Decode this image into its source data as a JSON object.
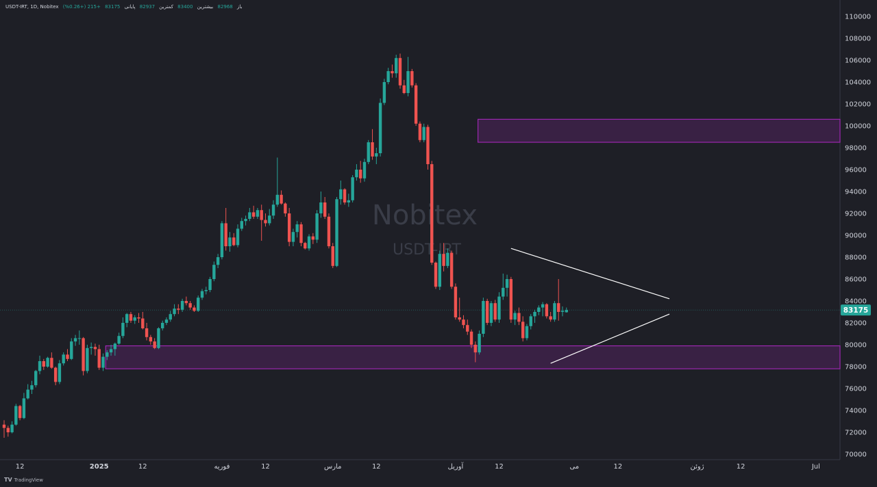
{
  "header": {
    "symbol": "USDT-IRT, 1D, Nobitex",
    "open_label": "باز",
    "open_value": "82968",
    "high_label": "بیشترین",
    "high_value": "83400",
    "low_label": "کمترین",
    "low_value": "82937",
    "close_label": "پایانی",
    "close_value": "83175",
    "change": "+215 (+0.26%)"
  },
  "footer": {
    "brand": "TradingView",
    "logo": "TV"
  },
  "watermark": {
    "line1": "Nobitex",
    "line2": "USDT-IRT"
  },
  "colors": {
    "up": "#26a69a",
    "down": "#ef5350",
    "zone": "#9c27b0",
    "grid": "#2a2e39",
    "background": "#1e1f26",
    "price_tag": "#26a69a"
  },
  "chart_data": {
    "type": "candlestick",
    "timeframe": "1D",
    "y_axis": {
      "ylim": [
        69500,
        111000
      ],
      "ticks": [
        70000,
        72000,
        74000,
        76000,
        78000,
        80000,
        82000,
        84000,
        86000,
        88000,
        90000,
        92000,
        94000,
        96000,
        98000,
        100000,
        102000,
        104000,
        106000,
        108000,
        110000
      ],
      "position": "right"
    },
    "x_axis": {
      "labels": [
        {
          "text": "12",
          "day": 4
        },
        {
          "text": "2025",
          "day": 24
        },
        {
          "text": "12",
          "day": 35
        },
        {
          "text": "فوریه",
          "day": 55
        },
        {
          "text": "12",
          "day": 66
        },
        {
          "text": "مارس",
          "day": 83
        },
        {
          "text": "12",
          "day": 94
        },
        {
          "text": "آوریل",
          "day": 114
        },
        {
          "text": "12",
          "day": 125
        },
        {
          "text": "می",
          "day": 144
        },
        {
          "text": "12",
          "day": 155
        },
        {
          "text": "ژوئن",
          "day": 175
        },
        {
          "text": "12",
          "day": 186
        },
        {
          "text": "Jul",
          "day": 205
        }
      ]
    },
    "last_price": {
      "value": 83175,
      "label": "83175"
    },
    "zones": [
      {
        "from_day": 120,
        "to_day": 210,
        "low": 98500,
        "high": 100600
      },
      {
        "from_day": 26,
        "to_day": 210,
        "low": 77800,
        "high": 79900
      }
    ],
    "trendlines": [
      {
        "from": [
          128,
          88800
        ],
        "to": [
          168,
          84200
        ]
      },
      {
        "from": [
          138,
          78300
        ],
        "to": [
          168,
          82800
        ]
      }
    ],
    "candles": [
      [
        72700,
        73100,
        71500,
        72400
      ],
      [
        72400,
        72600,
        71600,
        72000
      ],
      [
        72000,
        73000,
        71900,
        72700
      ],
      [
        72700,
        74600,
        72600,
        74400
      ],
      [
        74400,
        74500,
        73100,
        73300
      ],
      [
        73300,
        75600,
        73200,
        75100
      ],
      [
        75100,
        76400,
        75000,
        75900
      ],
      [
        75900,
        76700,
        75500,
        76300
      ],
      [
        76300,
        77700,
        76100,
        77600
      ],
      [
        77600,
        79000,
        77300,
        78500
      ],
      [
        78500,
        78700,
        77700,
        78000
      ],
      [
        78000,
        78900,
        77900,
        78800
      ],
      [
        78800,
        79300,
        77800,
        77900
      ],
      [
        77900,
        78000,
        76300,
        76600
      ],
      [
        76600,
        78600,
        76400,
        78300
      ],
      [
        78300,
        79300,
        78100,
        79100
      ],
      [
        79100,
        79600,
        78500,
        78700
      ],
      [
        78700,
        80600,
        78600,
        80300
      ],
      [
        80300,
        80900,
        79900,
        80600
      ],
      [
        80600,
        81300,
        80000,
        80600
      ],
      [
        80600,
        80700,
        77200,
        77600
      ],
      [
        77600,
        80000,
        77400,
        79700
      ],
      [
        79700,
        80200,
        79100,
        79800
      ],
      [
        79800,
        80100,
        79000,
        79600
      ],
      [
        79600,
        80000,
        77700,
        77900
      ],
      [
        77900,
        79200,
        77600,
        78900
      ],
      [
        78900,
        79500,
        78600,
        79300
      ],
      [
        79300,
        80000,
        79000,
        79600
      ],
      [
        79600,
        80200,
        79000,
        80100
      ],
      [
        80100,
        81100,
        80000,
        80800
      ],
      [
        80800,
        82500,
        80600,
        82000
      ],
      [
        82000,
        82900,
        81600,
        82800
      ],
      [
        82800,
        83000,
        82000,
        82200
      ],
      [
        82200,
        82700,
        81900,
        82500
      ],
      [
        82500,
        82900,
        82000,
        82400
      ],
      [
        82400,
        83000,
        81400,
        81500
      ],
      [
        81500,
        82000,
        80400,
        80700
      ],
      [
        80700,
        80900,
        80000,
        80300
      ],
      [
        80300,
        80600,
        79600,
        79700
      ],
      [
        79700,
        81600,
        79600,
        81500
      ],
      [
        81500,
        82200,
        81300,
        82000
      ],
      [
        82000,
        82500,
        81800,
        82300
      ],
      [
        82300,
        83100,
        82100,
        82800
      ],
      [
        82800,
        83700,
        82600,
        83300
      ],
      [
        83300,
        83700,
        82800,
        83200
      ],
      [
        83200,
        84200,
        83000,
        84000
      ],
      [
        84000,
        84400,
        83600,
        83800
      ],
      [
        83800,
        84000,
        83200,
        83400
      ],
      [
        83400,
        83600,
        83000,
        83100
      ],
      [
        83100,
        84500,
        83000,
        84300
      ],
      [
        84300,
        85100,
        84100,
        84900
      ],
      [
        84900,
        85300,
        84600,
        85000
      ],
      [
        85000,
        86200,
        84800,
        86000
      ],
      [
        86000,
        87600,
        85800,
        87300
      ],
      [
        87300,
        88300,
        87000,
        88000
      ],
      [
        88000,
        91300,
        87800,
        91100
      ],
      [
        91100,
        92500,
        88600,
        89000
      ],
      [
        89000,
        90300,
        88500,
        89800
      ],
      [
        89800,
        90200,
        89000,
        89100
      ],
      [
        89100,
        91000,
        88900,
        90600
      ],
      [
        90600,
        91600,
        90400,
        91300
      ],
      [
        91300,
        91800,
        90900,
        91500
      ],
      [
        91500,
        92500,
        91300,
        92100
      ],
      [
        92100,
        92700,
        91500,
        91700
      ],
      [
        91700,
        92500,
        91500,
        92300
      ],
      [
        92300,
        92800,
        89500,
        91400
      ],
      [
        91400,
        92000,
        90800,
        91100
      ],
      [
        91100,
        92400,
        90900,
        91800
      ],
      [
        91800,
        93200,
        91500,
        92800
      ],
      [
        92800,
        97100,
        92600,
        93700
      ],
      [
        93700,
        94100,
        92800,
        92900
      ],
      [
        92900,
        93000,
        91700,
        92000
      ],
      [
        92000,
        92500,
        89000,
        89400
      ],
      [
        89400,
        90600,
        89000,
        90300
      ],
      [
        90300,
        91300,
        89800,
        91000
      ],
      [
        91000,
        91200,
        89000,
        89300
      ],
      [
        89300,
        89400,
        88700,
        88800
      ],
      [
        88800,
        90100,
        88600,
        89900
      ],
      [
        89900,
        90200,
        89200,
        89600
      ],
      [
        89600,
        92300,
        89300,
        92000
      ],
      [
        92000,
        94000,
        91600,
        93000
      ],
      [
        93000,
        93500,
        91500,
        91700
      ],
      [
        91700,
        92000,
        88800,
        89000
      ],
      [
        89000,
        89300,
        87000,
        87200
      ],
      [
        87200,
        93500,
        87100,
        93300
      ],
      [
        93300,
        95000,
        92800,
        94200
      ],
      [
        94200,
        94300,
        92800,
        93000
      ],
      [
        93000,
        93800,
        92600,
        93200
      ],
      [
        93200,
        95500,
        93000,
        95300
      ],
      [
        95300,
        96500,
        95000,
        96000
      ],
      [
        96000,
        96800,
        94800,
        95200
      ],
      [
        95200,
        97000,
        94900,
        96700
      ],
      [
        96700,
        98700,
        96500,
        98500
      ],
      [
        98500,
        99700,
        96900,
        97200
      ],
      [
        97200,
        98000,
        96500,
        97500
      ],
      [
        97500,
        102500,
        97200,
        102100
      ],
      [
        102100,
        104300,
        101900,
        104000
      ],
      [
        104000,
        105300,
        103800,
        105000
      ],
      [
        105000,
        105600,
        104400,
        104800
      ],
      [
        104800,
        106500,
        104400,
        106200
      ],
      [
        106200,
        106600,
        103400,
        103700
      ],
      [
        103700,
        104200,
        102900,
        103000
      ],
      [
        103000,
        106300,
        102700,
        105000
      ],
      [
        105000,
        105200,
        103500,
        103700
      ],
      [
        103700,
        103900,
        100000,
        100200
      ],
      [
        100200,
        100400,
        98500,
        98700
      ],
      [
        98700,
        100200,
        98500,
        99900
      ],
      [
        99900,
        100100,
        96000,
        96500
      ],
      [
        96500,
        96800,
        87300,
        87500
      ],
      [
        87500,
        87600,
        85100,
        85300
      ],
      [
        85300,
        88600,
        85000,
        88300
      ],
      [
        88300,
        89300,
        86700,
        87200
      ],
      [
        87200,
        88800,
        87000,
        88400
      ],
      [
        88400,
        88600,
        85100,
        85300
      ],
      [
        85300,
        85600,
        82300,
        82500
      ],
      [
        82500,
        84300,
        82100,
        82300
      ],
      [
        82300,
        82700,
        81500,
        81800
      ],
      [
        81800,
        82300,
        80900,
        81200
      ],
      [
        81200,
        81400,
        79700,
        80000
      ],
      [
        80000,
        80300,
        78400,
        79300
      ],
      [
        79300,
        81300,
        79100,
        81000
      ],
      [
        81000,
        84300,
        80700,
        84000
      ],
      [
        84000,
        84200,
        81800,
        82000
      ],
      [
        82000,
        84000,
        81700,
        83800
      ],
      [
        83800,
        84100,
        82100,
        82300
      ],
      [
        82300,
        84800,
        82000,
        84400
      ],
      [
        84400,
        86500,
        84100,
        85200
      ],
      [
        85200,
        86400,
        84400,
        86000
      ],
      [
        86000,
        86200,
        82000,
        82300
      ],
      [
        82300,
        83100,
        81800,
        82900
      ],
      [
        82900,
        83400,
        81800,
        82100
      ],
      [
        82100,
        82600,
        80300,
        80600
      ],
      [
        80600,
        81900,
        80400,
        81700
      ],
      [
        81700,
        82800,
        81400,
        82600
      ],
      [
        82600,
        83200,
        82000,
        83000
      ],
      [
        83000,
        83600,
        82700,
        83400
      ],
      [
        83400,
        83900,
        82600,
        83700
      ],
      [
        83700,
        83800,
        82400,
        82600
      ],
      [
        82600,
        83000,
        82100,
        82300
      ],
      [
        82300,
        84000,
        82100,
        83800
      ],
      [
        83800,
        86000,
        82200,
        83000
      ],
      [
        83000,
        83500,
        82600,
        83100
      ],
      [
        82968,
        83400,
        82937,
        83175
      ]
    ]
  }
}
